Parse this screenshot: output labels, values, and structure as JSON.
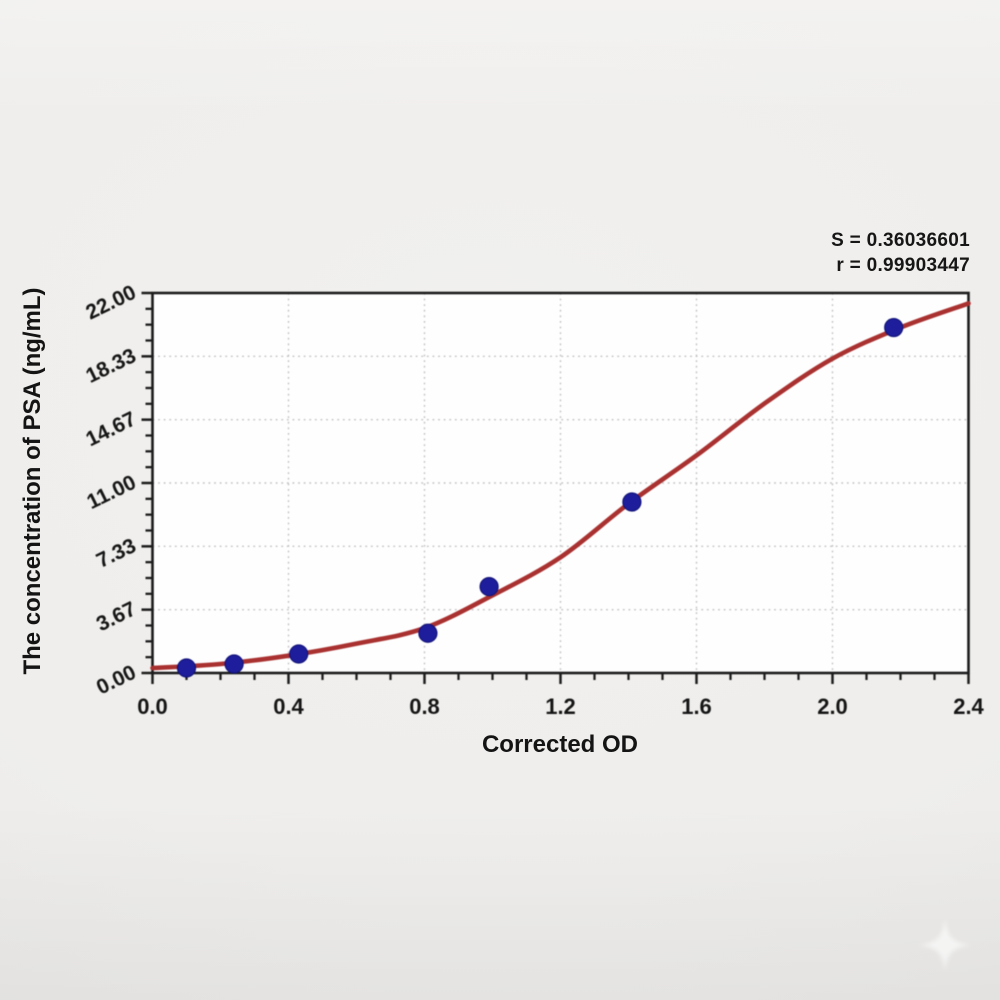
{
  "page": {
    "background_color": "#efeeec"
  },
  "annotation": {
    "s_value": "S = 0.36036601",
    "r_value": "r = 0.99903447"
  },
  "chart_data": {
    "type": "scatter",
    "title": "",
    "xlabel": "Corrected OD",
    "ylabel": "The concentration of PSA (ng/mL)",
    "xlim": [
      0.0,
      2.4
    ],
    "ylim": [
      0.0,
      22.0
    ],
    "grid": "dotted gridlines at major ticks, plot framed on all four sides, ticks outside with 3 minors per major interval",
    "legend_position": "none",
    "x_ticks": {
      "values": [
        0.0,
        0.4,
        0.8,
        1.2,
        1.6,
        2.0,
        2.4
      ],
      "labels": [
        "0.0",
        "0.4",
        "0.8",
        "1.2",
        "1.6",
        "2.0",
        "2.4"
      ],
      "minors_per_interval": 3
    },
    "y_ticks": {
      "values": [
        0.0,
        3.6667,
        7.3333,
        11.0,
        14.6667,
        18.3333,
        22.0
      ],
      "labels": [
        "0.00",
        "3.67",
        "7.33",
        "11.00",
        "14.67",
        "18.33",
        "22.00"
      ],
      "minors_per_interval": 3
    },
    "series": [
      {
        "name": "standard-points",
        "kind": "scatter",
        "x": [
          0.1,
          0.24,
          0.43,
          0.81,
          0.99,
          1.41,
          2.18
        ],
        "y": [
          0.29,
          0.52,
          1.1,
          2.3,
          5.0,
          9.9,
          20.0
        ]
      },
      {
        "name": "fitted-curve",
        "kind": "line",
        "x": [
          0.0,
          0.2,
          0.4,
          0.6,
          0.8,
          1.0,
          1.2,
          1.4,
          1.6,
          1.8,
          2.0,
          2.2,
          2.4
        ],
        "y": [
          0.29,
          0.52,
          1.0,
          1.7,
          2.6,
          4.5,
          6.7,
          9.8,
          12.6,
          15.6,
          18.2,
          20.0,
          21.4
        ]
      }
    ],
    "colors": {
      "curve": "#a93130",
      "point_fill": "#1e1e9c",
      "point_edge": "#12127a",
      "frame": "#1c1c1c",
      "grid": "#c2c2c2",
      "plot_background": "#fefefe",
      "text": "#151515"
    }
  }
}
